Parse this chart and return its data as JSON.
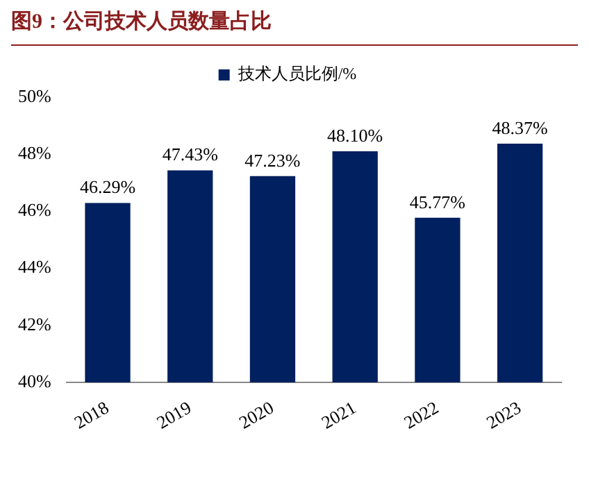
{
  "chart_data": {
    "type": "bar",
    "title": "图9：公司技术人员数量占比",
    "categories": [
      "2018",
      "2019",
      "2020",
      "2021",
      "2022",
      "2023"
    ],
    "series": [
      {
        "name": "技术人员比例/%",
        "color": "#002060",
        "values": [
          46.29,
          47.43,
          47.23,
          48.1,
          45.77,
          48.37
        ],
        "value_labels": [
          "46.29%",
          "47.43%",
          "47.23%",
          "48.10%",
          "45.77%",
          "48.37%"
        ]
      }
    ],
    "ylim": [
      40,
      50
    ],
    "yticks": [
      {
        "value": 40,
        "label": "40%"
      },
      {
        "value": 42,
        "label": "42%"
      },
      {
        "value": 44,
        "label": "44%"
      },
      {
        "value": 46,
        "label": "46%"
      },
      {
        "value": 48,
        "label": "48%"
      },
      {
        "value": 50,
        "label": "50%"
      }
    ],
    "grid": false,
    "legend": "top"
  }
}
